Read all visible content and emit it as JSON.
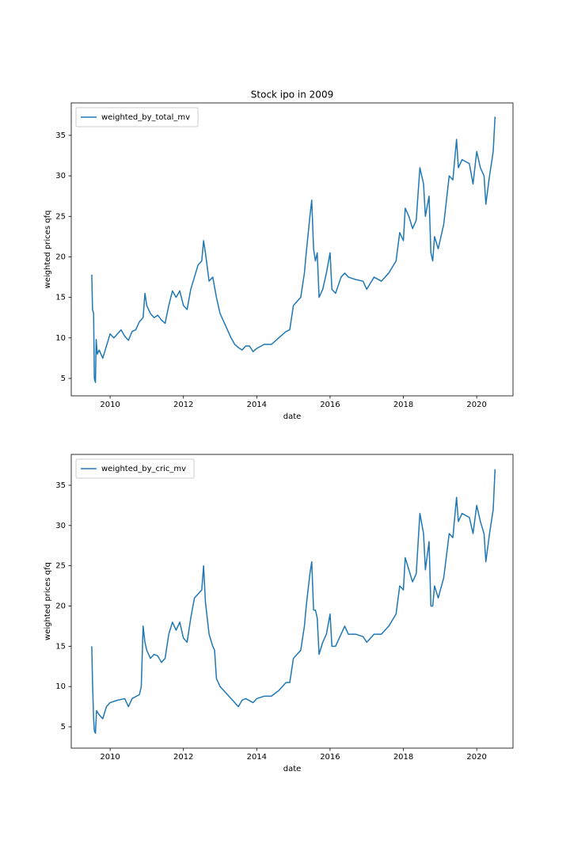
{
  "chart_data": [
    {
      "type": "line",
      "title": "Stock ipo in 2009",
      "xlabel": "date",
      "ylabel": "weighted prices qfq",
      "legend": "upper left",
      "grid": false,
      "x": [
        2009.5,
        2009.52,
        2009.55,
        2009.57,
        2009.6,
        2009.62,
        2009.65,
        2009.7,
        2009.8,
        2009.9,
        2010.0,
        2010.1,
        2010.2,
        2010.3,
        2010.4,
        2010.5,
        2010.6,
        2010.7,
        2010.8,
        2010.9,
        2010.95,
        2011.0,
        2011.1,
        2011.2,
        2011.3,
        2011.4,
        2011.5,
        2011.6,
        2011.7,
        2011.8,
        2011.9,
        2012.0,
        2012.1,
        2012.2,
        2012.3,
        2012.4,
        2012.5,
        2012.55,
        2012.6,
        2012.7,
        2012.8,
        2012.9,
        2013.0,
        2013.1,
        2013.2,
        2013.3,
        2013.4,
        2013.5,
        2013.6,
        2013.7,
        2013.8,
        2013.9,
        2014.0,
        2014.2,
        2014.4,
        2014.6,
        2014.8,
        2014.9,
        2015.0,
        2015.1,
        2015.2,
        2015.3,
        2015.35,
        2015.45,
        2015.5,
        2015.55,
        2015.6,
        2015.65,
        2015.7,
        2015.8,
        2015.9,
        2016.0,
        2016.05,
        2016.15,
        2016.3,
        2016.4,
        2016.5,
        2016.7,
        2016.9,
        2017.0,
        2017.2,
        2017.4,
        2017.6,
        2017.8,
        2017.9,
        2018.0,
        2018.05,
        2018.15,
        2018.25,
        2018.35,
        2018.45,
        2018.55,
        2018.6,
        2018.7,
        2018.75,
        2018.8,
        2018.85,
        2018.95,
        2019.1,
        2019.25,
        2019.35,
        2019.45,
        2019.5,
        2019.6,
        2019.8,
        2019.9,
        2020.0,
        2020.1,
        2020.2,
        2020.25,
        2020.35,
        2020.45,
        2020.5
      ],
      "series": [
        {
          "name": "weighted_by_total_mv",
          "color": "#1f77b4",
          "values": [
            17.8,
            13.5,
            13,
            5,
            4.5,
            9.8,
            8,
            8.5,
            7.5,
            9,
            10.5,
            10,
            10.5,
            11,
            10.2,
            9.7,
            10.8,
            11,
            12,
            12.5,
            15.5,
            14,
            13,
            12.5,
            12.8,
            12.2,
            11.8,
            14,
            15.8,
            15,
            15.8,
            14,
            13.5,
            16,
            17.5,
            19,
            19.5,
            22,
            20.5,
            17,
            17.5,
            15,
            13,
            12,
            11,
            10,
            9.2,
            8.8,
            8.5,
            9,
            9,
            8.3,
            8.7,
            9.2,
            9.2,
            10,
            10.8,
            11,
            14,
            14.5,
            15,
            18,
            20.5,
            25,
            27,
            21,
            19.5,
            20.5,
            15,
            16,
            18,
            20.5,
            16,
            15.5,
            17.5,
            18,
            17.5,
            17.2,
            17,
            16,
            17.5,
            17,
            18,
            19.5,
            23,
            22,
            26,
            25,
            23.5,
            24.5,
            31,
            29,
            25,
            27.5,
            20.5,
            19.5,
            22.5,
            21,
            24,
            30,
            29.5,
            34.5,
            31,
            32,
            31.5,
            29,
            33,
            31,
            30,
            26.5,
            30,
            33,
            37.3
          ]
        }
      ],
      "xlim": [
        2008.94,
        2020.99
      ],
      "xticks": [
        2010,
        2012,
        2014,
        2016,
        2018,
        2020
      ],
      "ylim": [
        2.85,
        39.0
      ],
      "yticks": [
        5,
        10,
        15,
        20,
        25,
        30,
        35
      ]
    },
    {
      "type": "line",
      "xlabel": "date",
      "ylabel": "weighted prices qfq",
      "legend": "upper left",
      "grid": false,
      "x": [
        2009.5,
        2009.52,
        2009.55,
        2009.57,
        2009.6,
        2009.63,
        2009.7,
        2009.8,
        2009.9,
        2010.0,
        2010.2,
        2010.4,
        2010.5,
        2010.6,
        2010.8,
        2010.85,
        2010.9,
        2010.95,
        2011.0,
        2011.1,
        2011.2,
        2011.3,
        2011.4,
        2011.5,
        2011.6,
        2011.7,
        2011.8,
        2011.9,
        2012.0,
        2012.1,
        2012.2,
        2012.3,
        2012.4,
        2012.5,
        2012.55,
        2012.6,
        2012.7,
        2012.8,
        2012.85,
        2012.9,
        2013.0,
        2013.1,
        2013.2,
        2013.3,
        2013.4,
        2013.5,
        2013.6,
        2013.7,
        2013.9,
        2014.0,
        2014.2,
        2014.4,
        2014.6,
        2014.8,
        2014.9,
        2015.0,
        2015.1,
        2015.2,
        2015.3,
        2015.35,
        2015.45,
        2015.5,
        2015.55,
        2015.6,
        2015.65,
        2015.7,
        2015.8,
        2015.9,
        2016.0,
        2016.05,
        2016.15,
        2016.3,
        2016.4,
        2016.5,
        2016.7,
        2016.9,
        2017.0,
        2017.2,
        2017.4,
        2017.6,
        2017.8,
        2017.9,
        2018.0,
        2018.05,
        2018.15,
        2018.25,
        2018.35,
        2018.45,
        2018.55,
        2018.6,
        2018.7,
        2018.75,
        2018.8,
        2018.85,
        2018.95,
        2019.1,
        2019.25,
        2019.35,
        2019.45,
        2019.5,
        2019.6,
        2019.8,
        2019.9,
        2020.0,
        2020.1,
        2020.2,
        2020.25,
        2020.35,
        2020.45,
        2020.5
      ],
      "series": [
        {
          "name": "weighted_by_cric_mv",
          "color": "#1f77b4",
          "values": [
            15,
            10.5,
            6,
            4.5,
            4.2,
            7,
            6.5,
            6,
            7.5,
            8,
            8.3,
            8.5,
            7.5,
            8.5,
            9,
            10,
            17.5,
            15.5,
            14.5,
            13.5,
            14,
            13.8,
            13,
            13.5,
            16.5,
            18,
            17,
            18,
            16,
            15.5,
            18.5,
            21,
            21.5,
            22,
            25,
            20.5,
            16.5,
            15,
            14.5,
            11,
            10,
            9.5,
            9,
            8.5,
            8,
            7.5,
            8.3,
            8.5,
            8,
            8.5,
            8.8,
            8.8,
            9.5,
            10.5,
            10.5,
            13.5,
            14,
            14.5,
            17.5,
            20,
            24,
            25.5,
            19.5,
            19.5,
            18.5,
            14,
            15.5,
            16.5,
            19,
            15,
            15,
            16.5,
            17.5,
            16.5,
            16.5,
            16.2,
            15.5,
            16.5,
            16.5,
            17.5,
            19,
            22.5,
            22,
            26,
            24.5,
            23,
            24,
            31.5,
            29,
            24.5,
            28,
            20,
            20,
            22.5,
            21,
            23.5,
            29,
            28.5,
            33.5,
            30.5,
            31.5,
            31,
            29,
            32.5,
            30.5,
            29,
            25.5,
            29,
            32,
            37
          ]
        }
      ],
      "xlim": [
        2008.94,
        2020.99
      ],
      "xticks": [
        2010,
        2012,
        2014,
        2016,
        2018,
        2020
      ],
      "ylim": [
        2.35,
        38.83
      ],
      "yticks": [
        5,
        10,
        15,
        20,
        25,
        30,
        35
      ]
    }
  ]
}
